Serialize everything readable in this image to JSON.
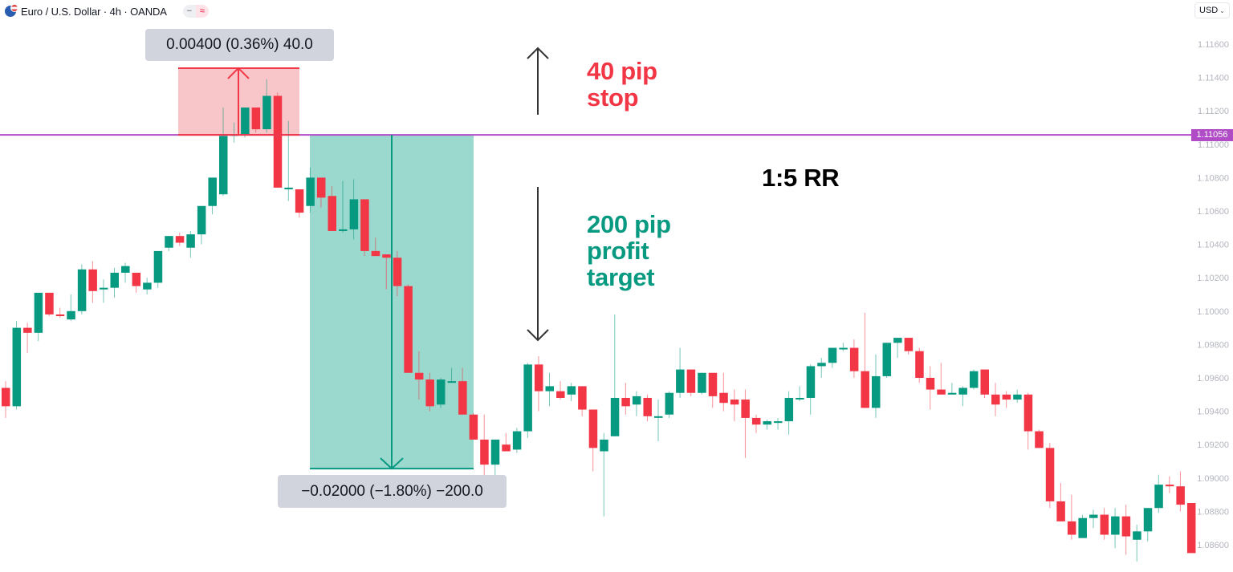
{
  "header": {
    "symbol_icon": "eur-usd-flag-icon",
    "title": "Euro / U.S. Dollar · 4h · OANDA",
    "badges": [
      {
        "icon": "minus-icon",
        "glyph": "−"
      },
      {
        "icon": "approx-icon",
        "glyph": "≈"
      }
    ],
    "currency": "USD",
    "currency_chevron": "⌄"
  },
  "colors": {
    "up": "#089981",
    "down": "#f23645",
    "stop_zone": "#f8c5c8",
    "target_zone": "#9bd8cd",
    "horizontal_line": "#b04cc6",
    "arrow": "#333333",
    "axis_text": "#b2b5be"
  },
  "annotations": {
    "stop_measure": "0.00400 (0.36%) 40.0",
    "target_measure": "−0.02000 (−1.80%) −200.0",
    "stop_label_line1": "40 pip",
    "stop_label_line2": "stop",
    "target_label_line1": "200 pip",
    "target_label_line2": "profit",
    "target_label_line3": "target",
    "rr_label": "1:5 RR"
  },
  "last_price": "1.11056",
  "chart_data": {
    "type": "candlestick",
    "title": "Euro / U.S. Dollar · 4h · OANDA",
    "xlabel": "",
    "ylabel": "USD",
    "ylim": [
      1.085,
      1.1175
    ],
    "y_ticks": [
      "1.11600",
      "1.11400",
      "1.11200",
      "1.11000",
      "1.10800",
      "1.10600",
      "1.10400",
      "1.10200",
      "1.10000",
      "1.09800",
      "1.09600",
      "1.09400",
      "1.09200",
      "1.09000",
      "1.08800",
      "1.08600"
    ],
    "horizontal_line": 1.11056,
    "stop_zone": {
      "from": 1.11056,
      "to": 1.11456,
      "pips": 40
    },
    "target_zone": {
      "from": 1.11056,
      "to": 1.09056,
      "pips": 200
    },
    "risk_reward": "1:5",
    "candles": [
      {
        "o": 1.0954,
        "h": 1.0958,
        "l": 1.0936,
        "c": 1.0943
      },
      {
        "o": 1.0943,
        "h": 1.0994,
        "l": 1.0941,
        "c": 1.099
      },
      {
        "o": 1.099,
        "h": 1.0993,
        "l": 1.0975,
        "c": 1.0987
      },
      {
        "o": 1.0987,
        "h": 1.1011,
        "l": 1.0982,
        "c": 1.1011
      },
      {
        "o": 1.1011,
        "h": 1.1011,
        "l": 1.0997,
        "c": 1.0998
      },
      {
        "o": 1.0998,
        "h": 1.1002,
        "l": 1.0996,
        "c": 1.0997
      },
      {
        "o": 1.0995,
        "h": 1.101,
        "l": 1.0994,
        "c": 1.1
      },
      {
        "o": 1.1,
        "h": 1.1028,
        "l": 1.0998,
        "c": 1.1025
      },
      {
        "o": 1.1025,
        "h": 1.103,
        "l": 1.1005,
        "c": 1.1012
      },
      {
        "o": 1.1013,
        "h": 1.1019,
        "l": 1.1005,
        "c": 1.1014
      },
      {
        "o": 1.1014,
        "h": 1.1026,
        "l": 1.1008,
        "c": 1.1023
      },
      {
        "o": 1.1023,
        "h": 1.1029,
        "l": 1.1017,
        "c": 1.1027
      },
      {
        "o": 1.1023,
        "h": 1.1023,
        "l": 1.1011,
        "c": 1.1015
      },
      {
        "o": 1.1013,
        "h": 1.102,
        "l": 1.101,
        "c": 1.1017
      },
      {
        "o": 1.1017,
        "h": 1.1036,
        "l": 1.1014,
        "c": 1.1036
      },
      {
        "o": 1.1038,
        "h": 1.1045,
        "l": 1.1036,
        "c": 1.1045
      },
      {
        "o": 1.1045,
        "h": 1.1047,
        "l": 1.1039,
        "c": 1.1041
      },
      {
        "o": 1.1038,
        "h": 1.1048,
        "l": 1.1032,
        "c": 1.1046
      },
      {
        "o": 1.1046,
        "h": 1.1058,
        "l": 1.104,
        "c": 1.1063
      },
      {
        "o": 1.1063,
        "h": 1.108,
        "l": 1.1058,
        "c": 1.108
      },
      {
        "o": 1.107,
        "h": 1.1122,
        "l": 1.1069,
        "c": 1.1105
      },
      {
        "o": 1.1105,
        "h": 1.1113,
        "l": 1.1101,
        "c": 1.1106
      },
      {
        "o": 1.1106,
        "h": 1.1113,
        "l": 1.1104,
        "c": 1.1122
      },
      {
        "o": 1.1122,
        "h": 1.1122,
        "l": 1.1107,
        "c": 1.1109
      },
      {
        "o": 1.1109,
        "h": 1.1139,
        "l": 1.1107,
        "c": 1.1129
      },
      {
        "o": 1.1129,
        "h": 1.1131,
        "l": 1.1105,
        "c": 1.1074
      },
      {
        "o": 1.1073,
        "h": 1.1114,
        "l": 1.1066,
        "c": 1.1074
      },
      {
        "o": 1.1073,
        "h": 1.1073,
        "l": 1.1056,
        "c": 1.1059
      },
      {
        "o": 1.1063,
        "h": 1.1086,
        "l": 1.1059,
        "c": 1.108
      },
      {
        "o": 1.108,
        "h": 1.108,
        "l": 1.1062,
        "c": 1.1068
      },
      {
        "o": 1.1069,
        "h": 1.1075,
        "l": 1.1048,
        "c": 1.1048
      },
      {
        "o": 1.1048,
        "h": 1.1078,
        "l": 1.1047,
        "c": 1.1049
      },
      {
        "o": 1.1049,
        "h": 1.1079,
        "l": 1.1043,
        "c": 1.1067
      },
      {
        "o": 1.1067,
        "h": 1.1067,
        "l": 1.1033,
        "c": 1.1036
      },
      {
        "o": 1.1036,
        "h": 1.1044,
        "l": 1.1033,
        "c": 1.1033
      },
      {
        "o": 1.1034,
        "h": 1.1034,
        "l": 1.1013,
        "c": 1.1032
      },
      {
        "o": 1.1032,
        "h": 1.1036,
        "l": 1.1009,
        "c": 1.1015
      },
      {
        "o": 1.1015,
        "h": 1.1016,
        "l": 1.0963,
        "c": 1.0963
      },
      {
        "o": 1.0963,
        "h": 1.0976,
        "l": 1.0947,
        "c": 1.0959
      },
      {
        "o": 1.0959,
        "h": 1.0963,
        "l": 1.094,
        "c": 1.0943
      },
      {
        "o": 1.0944,
        "h": 1.096,
        "l": 1.0942,
        "c": 1.0959
      },
      {
        "o": 1.0958,
        "h": 1.0966,
        "l": 1.0958,
        "c": 1.0958
      },
      {
        "o": 1.0958,
        "h": 1.0966,
        "l": 1.0938,
        "c": 1.0938
      },
      {
        "o": 1.0938,
        "h": 1.0939,
        "l": 1.0923,
        "c": 1.0923
      },
      {
        "o": 1.0923,
        "h": 1.0938,
        "l": 1.0892,
        "c": 1.0908
      },
      {
        "o": 1.0908,
        "h": 1.0922,
        "l": 1.0893,
        "c": 1.0923
      },
      {
        "o": 1.092,
        "h": 1.0927,
        "l": 1.0916,
        "c": 1.0916
      },
      {
        "o": 1.0917,
        "h": 1.093,
        "l": 1.0915,
        "c": 1.0928
      },
      {
        "o": 1.0928,
        "h": 1.0969,
        "l": 1.0924,
        "c": 1.0968
      },
      {
        "o": 1.0968,
        "h": 1.0973,
        "l": 1.094,
        "c": 1.0952
      },
      {
        "o": 1.0952,
        "h": 1.0963,
        "l": 1.0943,
        "c": 1.0955
      },
      {
        "o": 1.0952,
        "h": 1.0958,
        "l": 1.0947,
        "c": 1.0948
      },
      {
        "o": 1.095,
        "h": 1.0957,
        "l": 1.0946,
        "c": 1.0955
      },
      {
        "o": 1.0955,
        "h": 1.0955,
        "l": 1.0937,
        "c": 1.0941
      },
      {
        "o": 1.0941,
        "h": 1.0941,
        "l": 1.0904,
        "c": 1.0918
      },
      {
        "o": 1.0916,
        "h": 1.0927,
        "l": 1.0877,
        "c": 1.0923
      },
      {
        "o": 1.0925,
        "h": 1.0998,
        "l": 1.0925,
        "c": 1.0948
      },
      {
        "o": 1.0948,
        "h": 1.0957,
        "l": 1.0938,
        "c": 1.0943
      },
      {
        "o": 1.0944,
        "h": 1.0952,
        "l": 1.0937,
        "c": 1.0949
      },
      {
        "o": 1.0948,
        "h": 1.095,
        "l": 1.0934,
        "c": 1.0937
      },
      {
        "o": 1.0937,
        "h": 1.0947,
        "l": 1.0922,
        "c": 1.0937
      },
      {
        "o": 1.0938,
        "h": 1.0952,
        "l": 1.0936,
        "c": 1.0951
      },
      {
        "o": 1.0951,
        "h": 1.0978,
        "l": 1.0948,
        "c": 1.0965
      },
      {
        "o": 1.0965,
        "h": 1.0965,
        "l": 1.0949,
        "c": 1.0951
      },
      {
        "o": 1.0951,
        "h": 1.0963,
        "l": 1.095,
        "c": 1.0963
      },
      {
        "o": 1.0963,
        "h": 1.0963,
        "l": 1.0942,
        "c": 1.0949
      },
      {
        "o": 1.0951,
        "h": 1.0963,
        "l": 1.094,
        "c": 1.0945
      },
      {
        "o": 1.0947,
        "h": 1.0953,
        "l": 1.0934,
        "c": 1.0944
      },
      {
        "o": 1.0947,
        "h": 1.0953,
        "l": 1.0912,
        "c": 1.0936
      },
      {
        "o": 1.0936,
        "h": 1.0938,
        "l": 1.0927,
        "c": 1.0932
      },
      {
        "o": 1.0932,
        "h": 1.0935,
        "l": 1.0929,
        "c": 1.0934
      },
      {
        "o": 1.0933,
        "h": 1.0936,
        "l": 1.0929,
        "c": 1.0934
      },
      {
        "o": 1.0934,
        "h": 1.0952,
        "l": 1.0926,
        "c": 1.0948
      },
      {
        "o": 1.0948,
        "h": 1.0955,
        "l": 1.0946,
        "c": 1.0948
      },
      {
        "o": 1.0948,
        "h": 1.0968,
        "l": 1.0938,
        "c": 1.0967
      },
      {
        "o": 1.0967,
        "h": 1.0972,
        "l": 1.096,
        "c": 1.0969
      },
      {
        "o": 1.0969,
        "h": 1.0978,
        "l": 1.0966,
        "c": 1.0978
      },
      {
        "o": 1.0978,
        "h": 1.0981,
        "l": 1.0976,
        "c": 1.0978
      },
      {
        "o": 1.0978,
        "h": 1.0983,
        "l": 1.096,
        "c": 1.0964
      },
      {
        "o": 1.0964,
        "h": 1.0999,
        "l": 1.0942,
        "c": 1.0942
      },
      {
        "o": 1.0942,
        "h": 1.0974,
        "l": 1.0936,
        "c": 1.0961
      },
      {
        "o": 1.0961,
        "h": 1.0979,
        "l": 1.096,
        "c": 1.0981
      },
      {
        "o": 1.0981,
        "h": 1.0984,
        "l": 1.0972,
        "c": 1.0984
      },
      {
        "o": 1.0984,
        "h": 1.0984,
        "l": 1.0974,
        "c": 1.0976
      },
      {
        "o": 1.0976,
        "h": 1.0978,
        "l": 1.0957,
        "c": 1.096
      },
      {
        "o": 1.096,
        "h": 1.0967,
        "l": 1.0941,
        "c": 1.0953
      },
      {
        "o": 1.0953,
        "h": 1.0969,
        "l": 1.0951,
        "c": 1.095
      },
      {
        "o": 1.095,
        "h": 1.0957,
        "l": 1.095,
        "c": 1.0951
      },
      {
        "o": 1.095,
        "h": 1.0955,
        "l": 1.0943,
        "c": 1.0954
      },
      {
        "o": 1.0954,
        "h": 1.0965,
        "l": 1.0953,
        "c": 1.0964
      },
      {
        "o": 1.0965,
        "h": 1.0963,
        "l": 1.0948,
        "c": 1.095
      },
      {
        "o": 1.095,
        "h": 1.0957,
        "l": 1.0937,
        "c": 1.0944
      },
      {
        "o": 1.095,
        "h": 1.0952,
        "l": 1.0942,
        "c": 1.0947
      },
      {
        "o": 1.0947,
        "h": 1.0953,
        "l": 1.0945,
        "c": 1.095
      },
      {
        "o": 1.095,
        "h": 1.0951,
        "l": 1.0917,
        "c": 1.0928
      },
      {
        "o": 1.0928,
        "h": 1.0929,
        "l": 1.0918,
        "c": 1.0918
      },
      {
        "o": 1.0918,
        "h": 1.0921,
        "l": 1.0882,
        "c": 1.0886
      },
      {
        "o": 1.0886,
        "h": 1.0897,
        "l": 1.0874,
        "c": 1.0874
      },
      {
        "o": 1.0874,
        "h": 1.089,
        "l": 1.0863,
        "c": 1.0866
      },
      {
        "o": 1.0864,
        "h": 1.0878,
        "l": 1.0864,
        "c": 1.0876
      },
      {
        "o": 1.0876,
        "h": 1.0881,
        "l": 1.087,
        "c": 1.0878
      },
      {
        "o": 1.0878,
        "h": 1.0882,
        "l": 1.0863,
        "c": 1.0866
      },
      {
        "o": 1.0866,
        "h": 1.0882,
        "l": 1.0858,
        "c": 1.0877
      },
      {
        "o": 1.0877,
        "h": 1.0884,
        "l": 1.0854,
        "c": 1.0865
      },
      {
        "o": 1.0863,
        "h": 1.0872,
        "l": 1.085,
        "c": 1.0868
      },
      {
        "o": 1.0868,
        "h": 1.0882,
        "l": 1.0862,
        "c": 1.0882
      },
      {
        "o": 1.0882,
        "h": 1.0902,
        "l": 1.0879,
        "c": 1.0896
      },
      {
        "o": 1.0896,
        "h": 1.0901,
        "l": 1.0891,
        "c": 1.0895
      },
      {
        "o": 1.0895,
        "h": 1.0904,
        "l": 1.088,
        "c": 1.0884
      },
      {
        "o": 1.0885,
        "h": 1.0885,
        "l": 1.0855,
        "c": 1.0855
      }
    ]
  }
}
